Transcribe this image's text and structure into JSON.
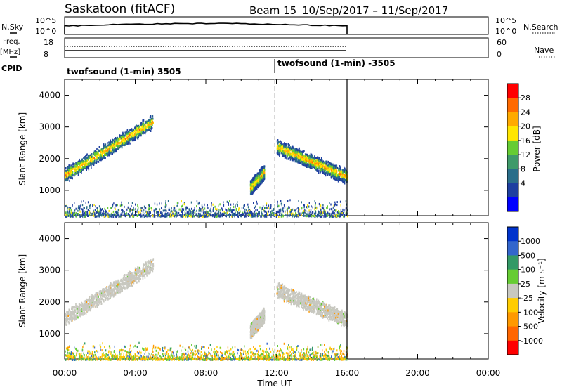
{
  "header": {
    "station": "Saskatoon (fitACF)",
    "beam": "Beam 15",
    "dates": "10/Sep/2017 – 11/Sep/2017"
  },
  "strips": {
    "nsky_label": "N.Sky",
    "nsky_ticks": [
      "10^5",
      "10^0"
    ],
    "nsearch_ticks": [
      "10^5",
      "10^0"
    ],
    "nsearch_label": "N.Search",
    "freq_label_top": "Freq.",
    "freq_label_unit": "[MHz]",
    "freq_ticks": [
      "18",
      "8"
    ],
    "nave_ticks": [
      "60",
      "0"
    ],
    "nave_label": "Nave",
    "cpid_label": "CPID",
    "cpid_segments": [
      {
        "label": "twofsound (1-min) 3505",
        "start_hour": 0
      },
      {
        "label": "twofsound (1-min) -3505",
        "start_hour": 12
      }
    ]
  },
  "chart_data": [
    {
      "type": "heatmap",
      "title": "",
      "xlabel": "",
      "ylabel": "Slant Range [km]",
      "x_range_hours": [
        0,
        24
      ],
      "ylim": [
        200,
        4500
      ],
      "yticks": [
        1000,
        2000,
        3000,
        4000
      ],
      "data_end_hour": 16,
      "colorbar": {
        "label": "Power [dB]",
        "ticks": [
          "28",
          "24",
          "20",
          "16",
          "12",
          "8",
          "4"
        ],
        "colors": [
          "#ff0000",
          "#ff6a00",
          "#ffaa00",
          "#ffe600",
          "#66cc33",
          "#3f9a6a",
          "#2a6e8a",
          "#1e3fa0",
          "#0000ff"
        ]
      },
      "echo_regions": [
        {
          "start_hour": 0.0,
          "end_hour": 5.0,
          "range_start_km": 1500,
          "range_end_km": 3200,
          "dominant": "18-22 dB"
        },
        {
          "start_hour": 10.5,
          "end_hour": 11.3,
          "range_start_km": 1100,
          "range_end_km": 1600,
          "dominant": "8-12 dB"
        },
        {
          "start_hour": 12.0,
          "end_hour": 16.0,
          "range_start_km": 2400,
          "range_end_km": 1450,
          "dominant": "18-24 dB"
        }
      ]
    },
    {
      "type": "heatmap",
      "title": "",
      "xlabel": "Time UT",
      "ylabel": "Slant Range [km]",
      "x_range_hours": [
        0,
        24
      ],
      "xticks": [
        "00:00",
        "04:00",
        "08:00",
        "12:00",
        "16:00",
        "20:00",
        "00:00"
      ],
      "ylim": [
        200,
        4500
      ],
      "yticks": [
        1000,
        2000,
        3000,
        4000
      ],
      "data_end_hour": 16,
      "colorbar": {
        "label": "Velocity [m s⁻¹]",
        "ticks": [
          "1000",
          "500",
          "100",
          "25",
          "-25",
          "-100",
          "-500",
          "-1000"
        ],
        "colors": [
          "#0033cc",
          "#3366cc",
          "#339966",
          "#66cc33",
          "#c8c8c0",
          "#ffcc00",
          "#ff9900",
          "#ff6600",
          "#ff0000"
        ]
      },
      "echo_regions": [
        {
          "start_hour": 0.0,
          "end_hour": 5.0,
          "range_start_km": 1500,
          "range_end_km": 3200,
          "dominant": "ground scatter"
        },
        {
          "start_hour": 10.5,
          "end_hour": 11.3,
          "range_start_km": 1100,
          "range_end_km": 1600,
          "dominant": "ground scatter"
        },
        {
          "start_hour": 12.0,
          "end_hour": 16.0,
          "range_start_km": 2400,
          "range_end_km": 1450,
          "dominant": "ground scatter"
        }
      ]
    }
  ]
}
